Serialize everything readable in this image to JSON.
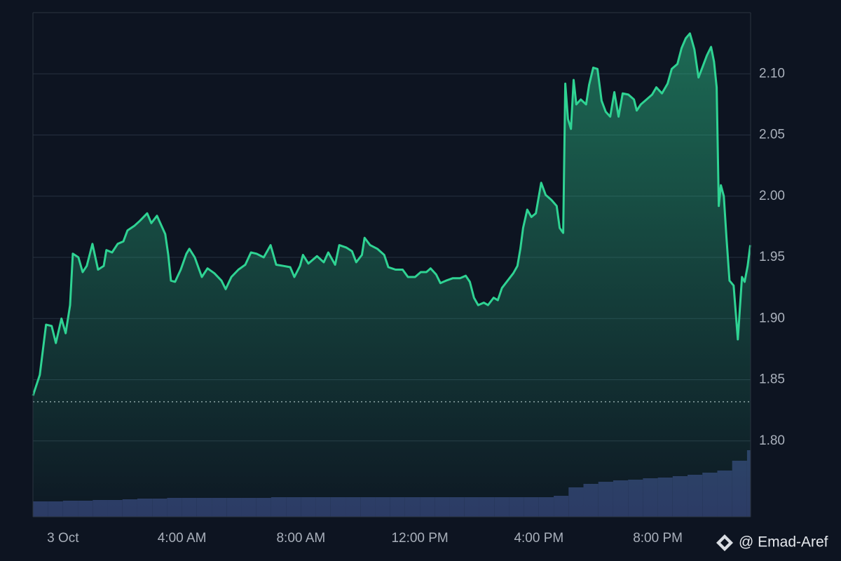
{
  "chart_data": {
    "type": "line",
    "xlim": [
      -1.01,
      23.12
    ],
    "ylim": [
      1.738,
      2.15
    ],
    "y2lim": [
      0,
      110
    ],
    "xticks": [
      {
        "value": 0,
        "label": "3 Oct"
      },
      {
        "value": 4,
        "label": "4:00 AM"
      },
      {
        "value": 8,
        "label": "8:00 AM"
      },
      {
        "value": 12,
        "label": "12:00 PM"
      },
      {
        "value": 16,
        "label": "4:00 PM"
      },
      {
        "value": 20,
        "label": "8:00 PM"
      }
    ],
    "yticks": [
      {
        "value": 1.8,
        "label": "1.80"
      },
      1.85,
      {
        "value": 1.9,
        "label": "1.90"
      },
      1.95,
      {
        "value": 2.0,
        "label": "2.00"
      },
      2.05,
      {
        "value": 2.1,
        "label": "2.10"
      }
    ],
    "grid": true,
    "reference_line": 1.832,
    "watermark": "@ Emad-Aref",
    "series": [
      {
        "color": "#2fd393",
        "x": [
          -1.01,
          -0.78,
          -0.57,
          -0.38,
          -0.24,
          -0.05,
          0.09,
          0.24,
          0.33,
          0.52,
          0.66,
          0.8,
          0.99,
          1.18,
          1.37,
          1.46,
          1.65,
          1.84,
          2.03,
          2.17,
          2.41,
          2.59,
          2.83,
          2.97,
          3.16,
          3.44,
          3.54,
          3.63,
          3.77,
          3.96,
          4.15,
          4.25,
          4.43,
          4.67,
          4.86,
          5.09,
          5.33,
          5.47,
          5.66,
          5.9,
          6.13,
          6.32,
          6.51,
          6.75,
          6.98,
          7.17,
          7.41,
          7.64,
          7.78,
          7.97,
          8.07,
          8.25,
          8.54,
          8.77,
          8.92,
          9.15,
          9.29,
          9.53,
          9.72,
          9.86,
          10.05,
          10.14,
          10.33,
          10.57,
          10.8,
          10.94,
          11.18,
          11.42,
          11.6,
          11.84,
          12.03,
          12.22,
          12.36,
          12.55,
          12.69,
          12.88,
          13.11,
          13.35,
          13.54,
          13.68,
          13.82,
          13.96,
          14.15,
          14.29,
          14.48,
          14.62,
          14.76,
          14.95,
          15.14,
          15.28,
          15.38,
          15.47,
          15.61,
          15.75,
          15.9,
          16.08,
          16.23,
          16.42,
          16.6,
          16.7,
          16.82,
          16.89,
          16.98,
          17.08,
          17.17,
          17.26,
          17.41,
          17.59,
          17.69,
          17.83,
          17.97,
          18.11,
          18.25,
          18.4,
          18.54,
          18.68,
          18.82,
          19.01,
          19.2,
          19.29,
          19.43,
          19.62,
          19.81,
          19.95,
          20.14,
          20.33,
          20.47,
          20.66,
          20.8,
          20.94,
          21.08,
          21.23,
          21.37,
          21.51,
          21.65,
          21.79,
          21.89,
          21.98,
          22.05,
          22.12,
          22.22,
          22.31,
          22.41,
          22.55,
          22.69,
          22.83,
          22.92,
          23.02,
          23.11
        ],
        "values": [
          1.837,
          1.854,
          1.895,
          1.894,
          1.88,
          1.9,
          1.888,
          1.911,
          1.953,
          1.95,
          1.938,
          1.943,
          1.961,
          1.94,
          1.943,
          1.956,
          1.954,
          1.961,
          1.963,
          1.972,
          1.976,
          1.98,
          1.986,
          1.978,
          1.984,
          1.969,
          1.952,
          1.931,
          1.93,
          1.94,
          1.953,
          1.957,
          1.95,
          1.934,
          1.941,
          1.937,
          1.931,
          1.924,
          1.934,
          1.94,
          1.944,
          1.954,
          1.953,
          1.95,
          1.96,
          1.944,
          1.943,
          1.942,
          1.934,
          1.943,
          1.952,
          1.945,
          1.951,
          1.946,
          1.954,
          1.944,
          1.96,
          1.958,
          1.955,
          1.946,
          1.952,
          1.966,
          1.96,
          1.957,
          1.952,
          1.942,
          1.94,
          1.94,
          1.934,
          1.934,
          1.938,
          1.938,
          1.941,
          1.936,
          1.929,
          1.931,
          1.933,
          1.933,
          1.935,
          1.93,
          1.917,
          1.911,
          1.913,
          1.911,
          1.917,
          1.915,
          1.925,
          1.931,
          1.937,
          1.943,
          1.957,
          1.974,
          1.989,
          1.983,
          1.986,
          2.011,
          2.001,
          1.997,
          1.992,
          1.974,
          1.97,
          2.092,
          2.063,
          2.055,
          2.095,
          2.075,
          2.079,
          2.075,
          2.091,
          2.105,
          2.104,
          2.078,
          2.069,
          2.065,
          2.085,
          2.065,
          2.084,
          2.083,
          2.079,
          2.07,
          2.075,
          2.079,
          2.083,
          2.089,
          2.084,
          2.092,
          2.104,
          2.108,
          2.121,
          2.129,
          2.133,
          2.12,
          2.097,
          2.106,
          2.115,
          2.122,
          2.11,
          2.089,
          1.992,
          2.009,
          2.0,
          1.966,
          1.931,
          1.927,
          1.883,
          1.934,
          1.93,
          1.943,
          1.96
        ]
      },
      {
        "type": "bar",
        "axis": "y2",
        "color": "#2c3864",
        "x": [
          -1,
          -0.5,
          0,
          0.5,
          1,
          1.5,
          2,
          2.5,
          3,
          3.5,
          4,
          4.5,
          5,
          5.5,
          6,
          6.5,
          7,
          7.5,
          8,
          8.5,
          9,
          9.5,
          10,
          10.5,
          11,
          11.5,
          12,
          12.5,
          13,
          13.5,
          14,
          14.5,
          15,
          15.5,
          16,
          16.5,
          17,
          17.5,
          18,
          18.5,
          19,
          19.5,
          20,
          20.5,
          21,
          21.5,
          22,
          22.5,
          23
        ],
        "values": [
          22,
          22,
          23,
          23,
          24,
          24,
          25,
          26,
          26,
          27,
          27,
          27,
          27,
          27,
          27,
          27,
          28,
          28,
          28,
          28,
          28,
          28,
          28,
          28,
          28,
          28,
          28,
          28,
          28,
          28,
          28,
          28,
          28,
          28,
          28,
          30,
          42,
          47,
          50,
          52,
          53,
          55,
          56,
          58,
          60,
          63,
          66,
          80,
          95
        ]
      }
    ]
  }
}
